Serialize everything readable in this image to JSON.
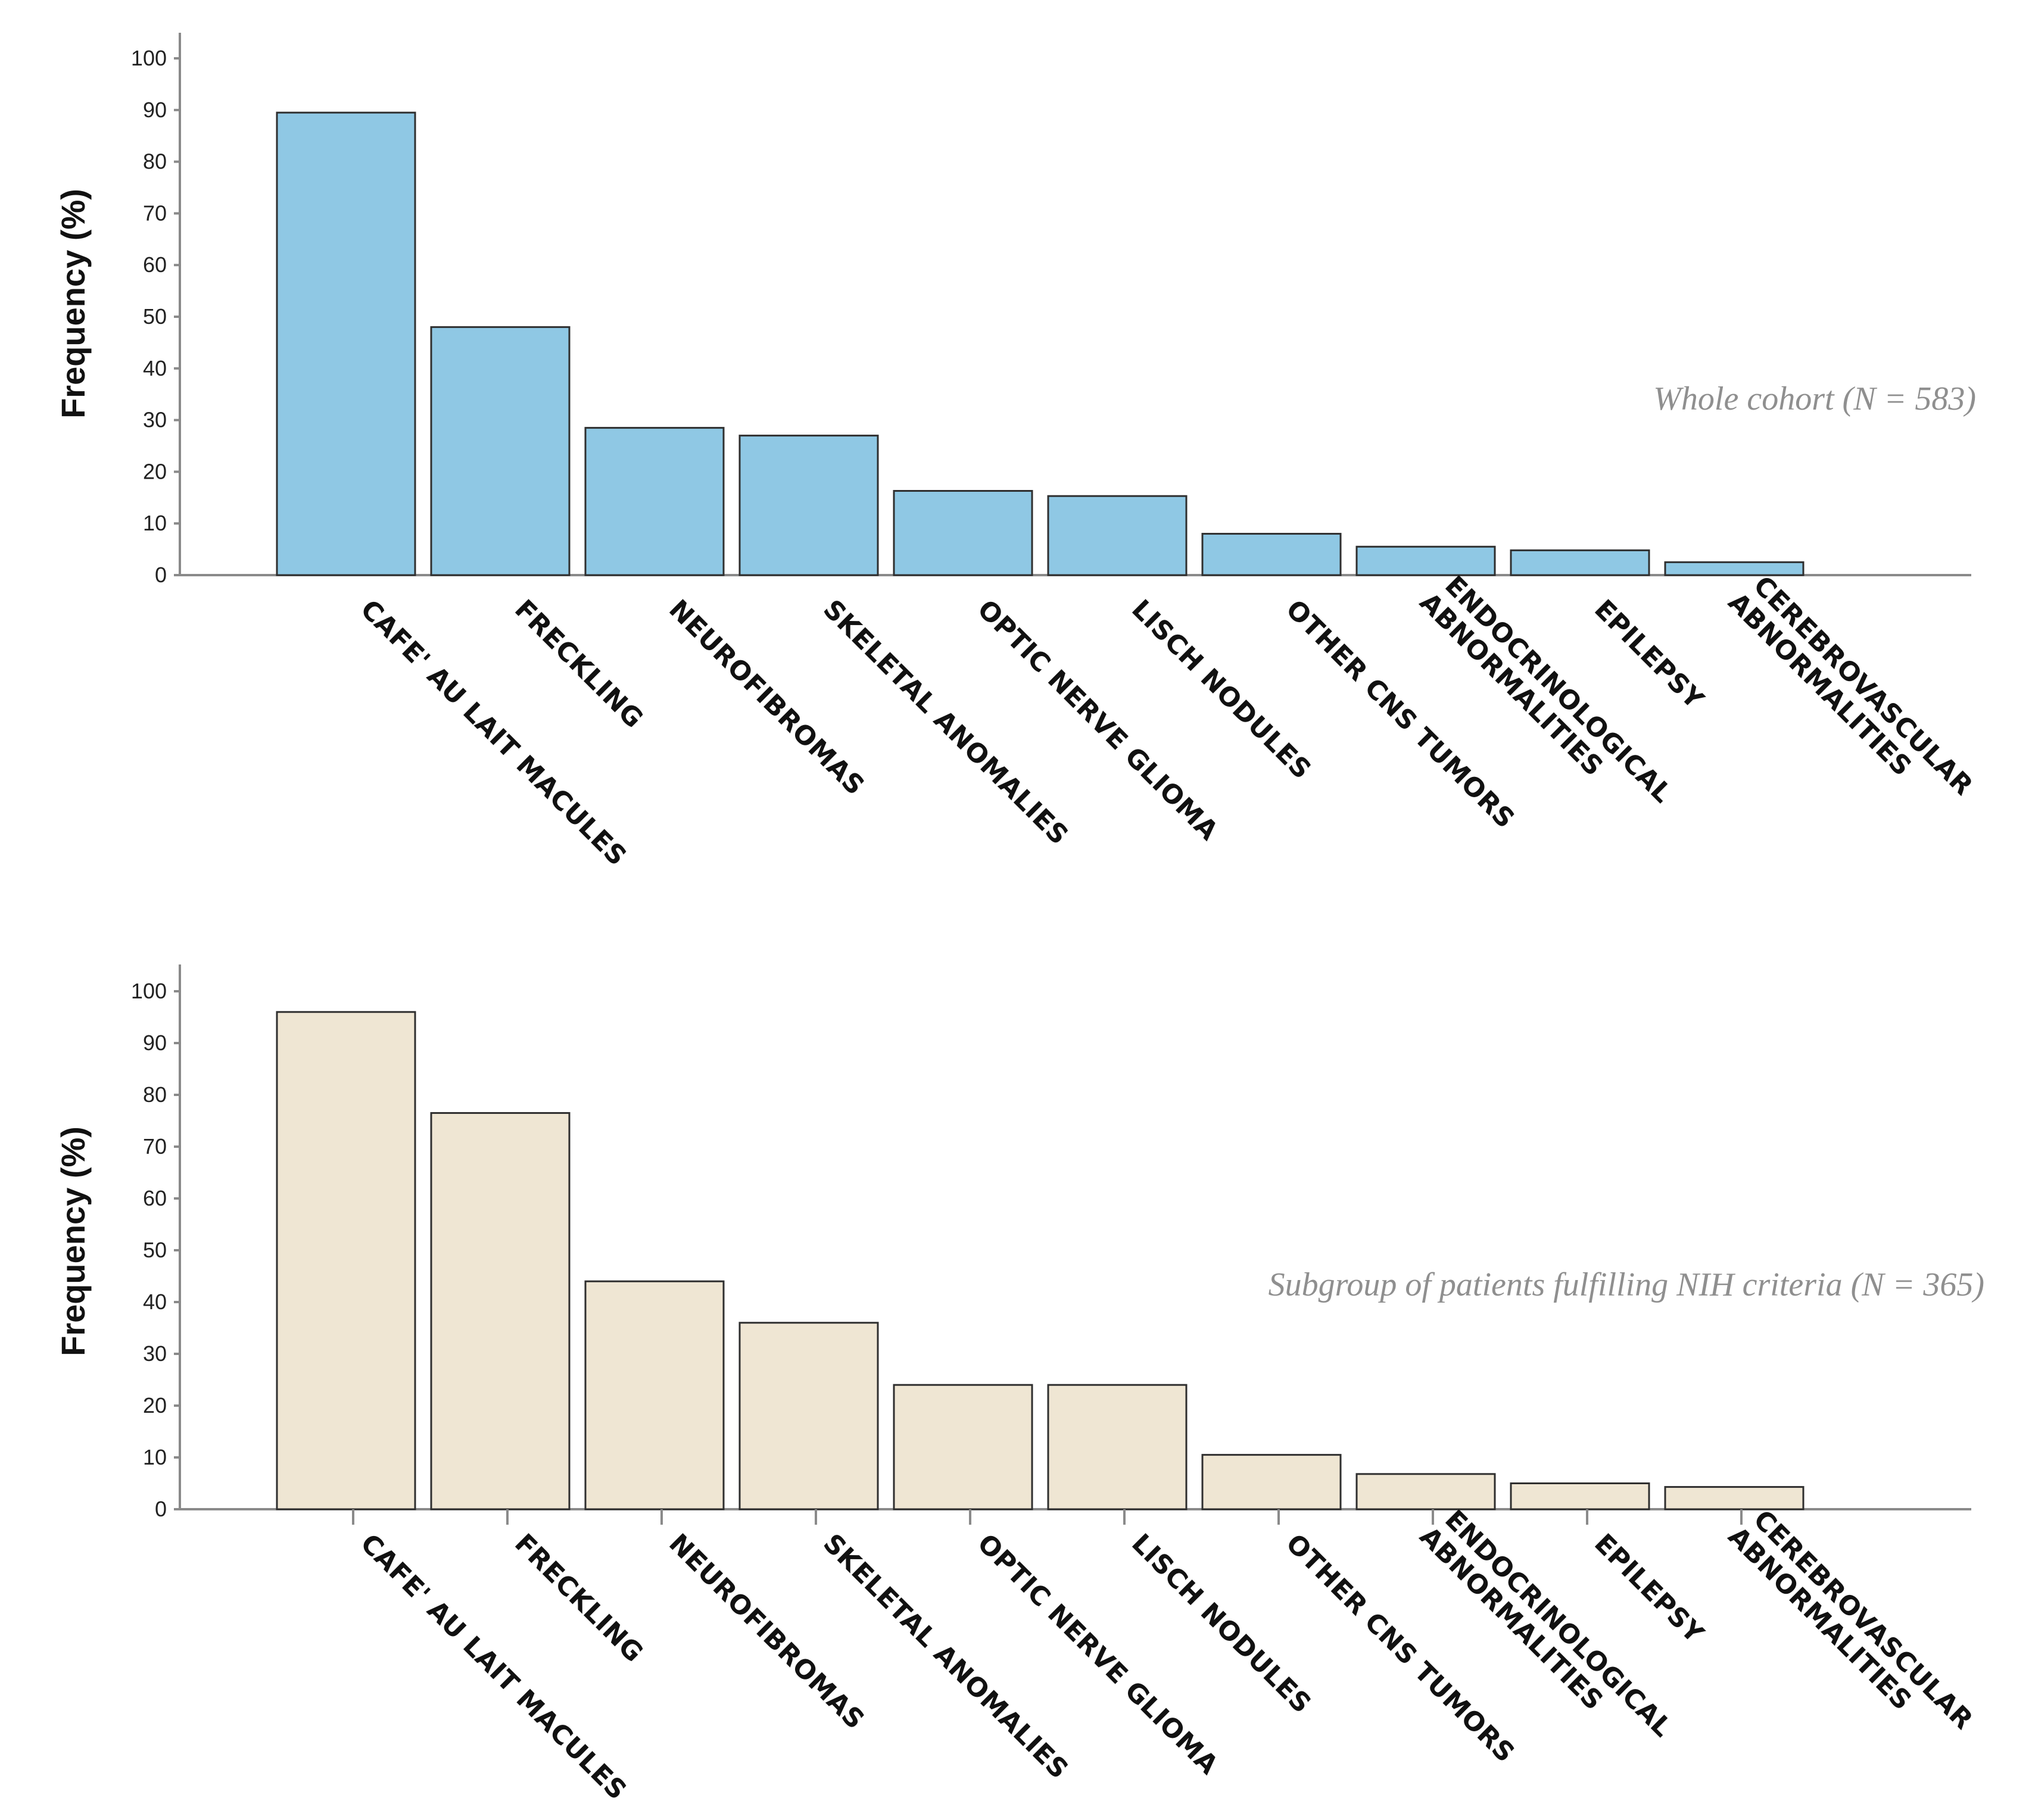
{
  "chart_data": [
    {
      "type": "bar",
      "title": "",
      "annotation": "Whole cohort (N = 583)",
      "xlabel": "",
      "ylabel": "Frequency (%)",
      "ylim": [
        0,
        100
      ],
      "yticks": [
        "0",
        "10",
        "20",
        "30",
        "40",
        "50",
        "60",
        "70",
        "80",
        "90",
        "100"
      ],
      "bar_color": "#8fc8e4",
      "categories": [
        [
          "CAFE' AU LAIT MACULES"
        ],
        [
          "FRECKLING"
        ],
        [
          "NEUROFIBROMAS"
        ],
        [
          "SKELETAL ANOMALIES"
        ],
        [
          "OPTIC NERVE GLIOMA"
        ],
        [
          "LISCH NODULES"
        ],
        [
          "OTHER CNS TUMORS"
        ],
        [
          "ENDOCRINOLOGICAL",
          "ABNORMALITIES"
        ],
        [
          "EPILEPSY"
        ],
        [
          "CEREBROVASCULAR",
          "ABNORMALITIES"
        ]
      ],
      "values": [
        89.5,
        48,
        28.5,
        27,
        16.3,
        15.3,
        8,
        5.5,
        4.8,
        2.5
      ]
    },
    {
      "type": "bar",
      "title": "",
      "annotation": "Subgroup of patients fulfilling NIH criteria (N = 365)",
      "xlabel": "",
      "ylabel": "Frequency (%)",
      "ylim": [
        0,
        100
      ],
      "yticks": [
        "0",
        "10",
        "20",
        "30",
        "40",
        "50",
        "60",
        "70",
        "80",
        "90",
        "100"
      ],
      "bar_color": "#efe6d3",
      "categories": [
        [
          "CAFE' AU LAIT MACULES"
        ],
        [
          "FRECKLING"
        ],
        [
          "NEUROFIBROMAS"
        ],
        [
          "SKELETAL ANOMALIES"
        ],
        [
          "OPTIC NERVE GLIOMA"
        ],
        [
          "LISCH NODULES"
        ],
        [
          "OTHER CNS TUMORS"
        ],
        [
          "ENDOCRINOLOGICAL",
          "ABNORMALITIES"
        ],
        [
          "EPILEPSY"
        ],
        [
          "CEREBROVASCULAR",
          "ABNORMALITIES"
        ]
      ],
      "values": [
        96,
        76.5,
        44,
        36,
        24,
        24,
        10.5,
        6.8,
        5,
        4.3
      ]
    }
  ]
}
